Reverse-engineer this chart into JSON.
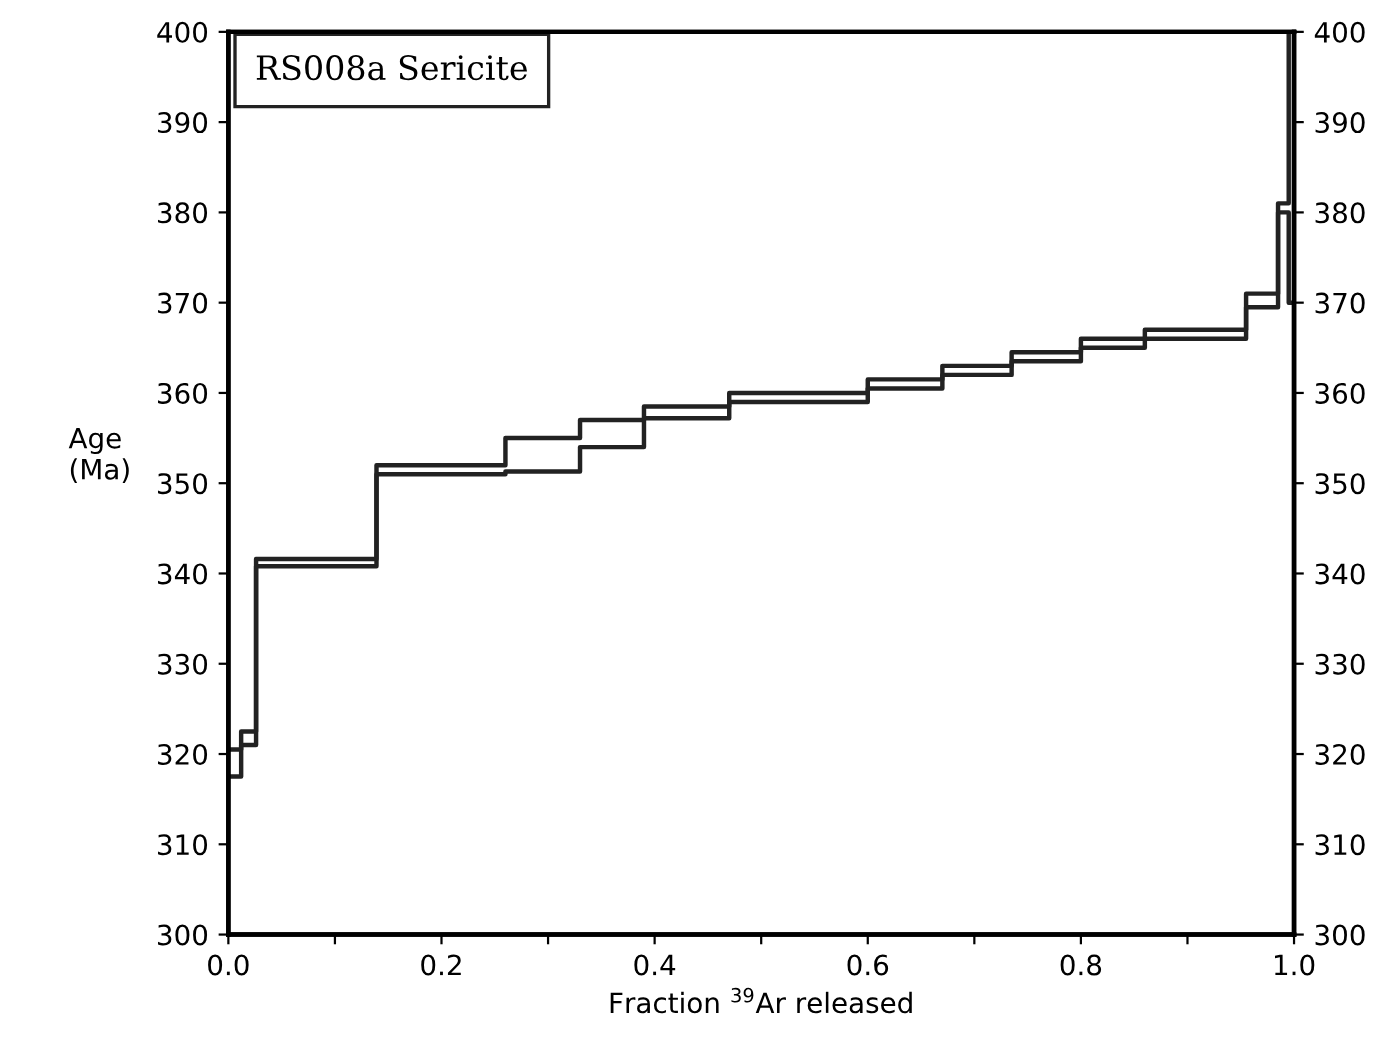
{
  "chart_data": {
    "type": "step",
    "title": "RS008a Sericite",
    "xlabel": "Fraction $^{39}$Ar released",
    "ylabel": "Age\n(Ma)",
    "series": [
      {
        "color": "#222222",
        "x": [
          0,
          0.012,
          0.026,
          0.139,
          0.26,
          0.33,
          0.39,
          0.47,
          0.6,
          0.67,
          0.735,
          0.8,
          0.86,
          0.955,
          0.985,
          0.995,
          1.0
        ],
        "values": [
          317.5,
          321,
          340.8,
          351,
          351.3,
          354,
          357.2,
          359,
          360.5,
          362,
          363.5,
          365,
          366,
          369.5,
          380,
          370,
          370
        ]
      },
      {
        "color": "#222222",
        "x": [
          0,
          0.012,
          0.026,
          0.139,
          0.26,
          0.33,
          0.39,
          0.47,
          0.6,
          0.67,
          0.735,
          0.8,
          0.86,
          0.955,
          0.985,
          0.995,
          1.0
        ],
        "values": [
          320.5,
          322.5,
          341.6,
          352,
          355,
          357,
          358.5,
          360,
          361.5,
          363,
          364.5,
          366,
          367,
          371,
          381,
          400,
          400
        ]
      }
    ],
    "xlim": [
      0,
      1.0
    ],
    "xticks": [
      {
        "value": 0,
        "label": "0.0"
      },
      {
        "value": 0.1,
        "label": null
      },
      0.2,
      {
        "value": 0.3,
        "label": null
      },
      0.4,
      {
        "value": 0.5,
        "label": null
      },
      0.6,
      {
        "value": 0.7,
        "label": null
      },
      0.8,
      {
        "value": 0.9,
        "label": null
      },
      {
        "value": 1.0,
        "label": "1.0"
      }
    ],
    "ylim": [
      300,
      400
    ],
    "yticks": [
      300,
      310,
      320,
      330,
      340,
      350,
      360,
      370,
      380,
      390,
      400
    ],
    "y2lim": [
      300,
      400
    ],
    "y2ticks": [
      300,
      310,
      320,
      330,
      340,
      350,
      360,
      370,
      380,
      390,
      400
    ],
    "grid": false
  }
}
